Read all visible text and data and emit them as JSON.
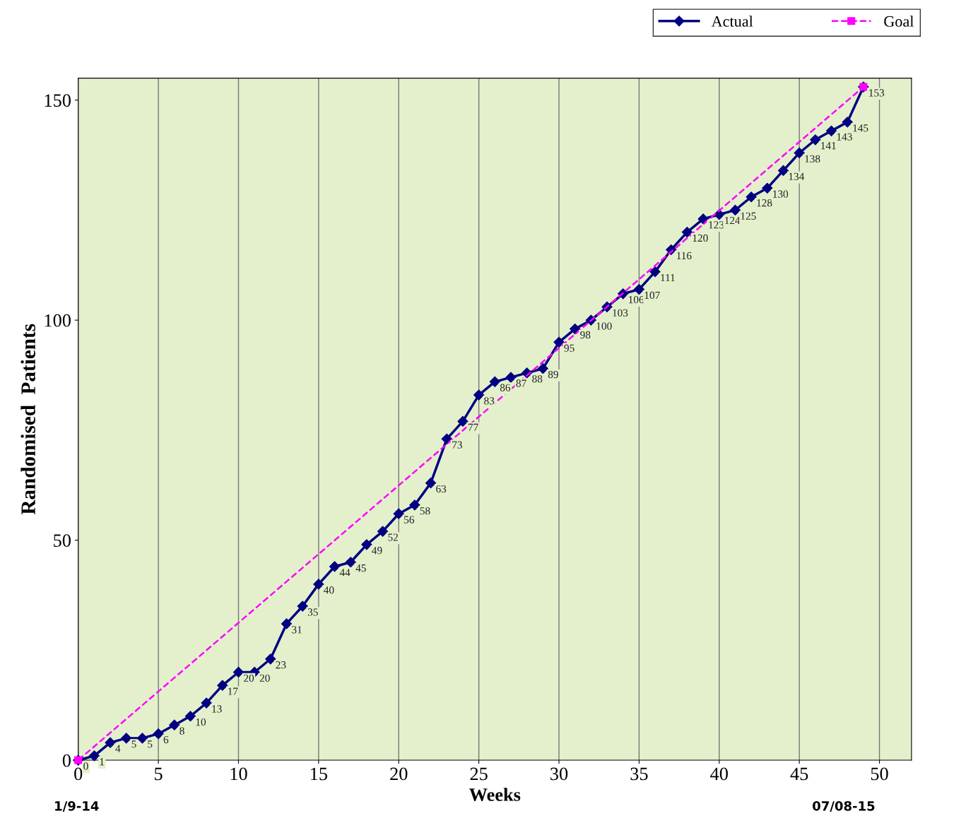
{
  "chart_data": {
    "type": "line",
    "xlabel": "Weeks",
    "ylabel": "Randomised  Patients",
    "x": [
      0,
      1,
      2,
      3,
      4,
      5,
      6,
      7,
      8,
      9,
      10,
      11,
      12,
      13,
      14,
      15,
      16,
      17,
      18,
      19,
      20,
      21,
      22,
      23,
      24,
      25,
      26,
      27,
      28,
      29,
      30,
      31,
      32,
      33,
      34,
      35,
      36,
      37,
      38,
      39,
      40,
      41,
      42,
      43,
      44,
      45,
      46,
      47,
      48,
      49
    ],
    "series": [
      {
        "name": "Actual",
        "color": "#000080",
        "marker": "diamond",
        "line_style": "solid",
        "data_labels": true,
        "values": [
          0,
          1,
          4,
          5,
          5,
          6,
          8,
          10,
          13,
          17,
          20,
          20,
          23,
          31,
          35,
          40,
          44,
          45,
          49,
          52,
          56,
          58,
          63,
          73,
          77,
          83,
          86,
          87,
          88,
          89,
          95,
          98,
          100,
          103,
          106,
          107,
          111,
          116,
          120,
          123,
          124,
          125,
          128,
          130,
          134,
          138,
          141,
          143,
          145,
          153
        ]
      },
      {
        "name": "Goal",
        "color": "#ff00ff",
        "marker": "square",
        "line_style": "dashed",
        "x": [
          0,
          49
        ],
        "values": [
          0,
          153
        ]
      }
    ],
    "xlim": [
      0,
      52
    ],
    "xticks": [
      0,
      5,
      10,
      15,
      20,
      25,
      30,
      35,
      40,
      45,
      50
    ],
    "ylim": [
      0,
      155
    ],
    "yticks": [
      0,
      50,
      100,
      150
    ],
    "grid": "x",
    "legend": "top right",
    "annotations": [
      "1/9-14",
      "07/08-15"
    ]
  }
}
